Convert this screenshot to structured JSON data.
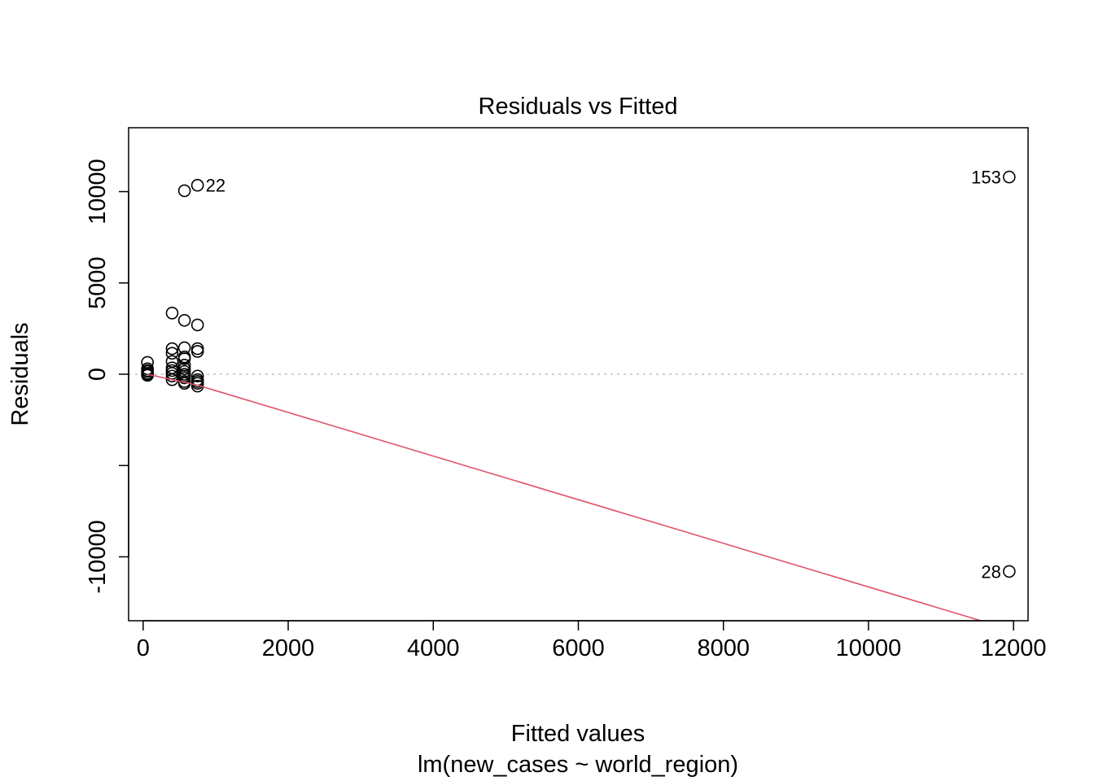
{
  "chart_data": {
    "type": "scatter",
    "title": "Residuals vs Fitted",
    "xlabel": "Fitted values",
    "subtitle": "lm(new_cases ~ world_region)",
    "ylabel": "Residuals",
    "xlim": [
      -200,
      12200
    ],
    "ylim": [
      -13500,
      13500
    ],
    "xticks": [
      0,
      2000,
      4000,
      6000,
      8000,
      10000,
      12000
    ],
    "xtick_labels": [
      "0",
      "2000",
      "4000",
      "6000",
      "8000",
      "10000",
      "12000"
    ],
    "yticks": [
      -10000,
      -5000,
      0,
      5000,
      10000
    ],
    "ytick_labels": [
      "-10000",
      "",
      "0",
      "5000",
      "10000"
    ],
    "zero_line": {
      "y": 0,
      "style": "dotted",
      "color": "#bebebe"
    },
    "smooth_line": {
      "color": "#df536b",
      "points": [
        [
          60,
          0
        ],
        [
          750,
          -600
        ],
        [
          11550,
          -13500
        ]
      ]
    },
    "point_color": "#000000",
    "points": [
      {
        "x": 60,
        "y": 650
      },
      {
        "x": 60,
        "y": 300
      },
      {
        "x": 60,
        "y": 150
      },
      {
        "x": 60,
        "y": 50
      },
      {
        "x": 60,
        "y": -20
      },
      {
        "x": 60,
        "y": -60
      },
      {
        "x": 60,
        "y": 200
      },
      {
        "x": 60,
        "y": 0
      },
      {
        "x": 400,
        "y": 3350
      },
      {
        "x": 400,
        "y": 1400
      },
      {
        "x": 400,
        "y": 1150
      },
      {
        "x": 400,
        "y": 700
      },
      {
        "x": 400,
        "y": 200
      },
      {
        "x": 400,
        "y": 50
      },
      {
        "x": 400,
        "y": -100
      },
      {
        "x": 400,
        "y": -300
      },
      {
        "x": 400,
        "y": 350
      },
      {
        "x": 570,
        "y": 10050
      },
      {
        "x": 570,
        "y": 2950
      },
      {
        "x": 570,
        "y": 1450
      },
      {
        "x": 570,
        "y": 950
      },
      {
        "x": 570,
        "y": 850
      },
      {
        "x": 570,
        "y": 500
      },
      {
        "x": 570,
        "y": 300
      },
      {
        "x": 570,
        "y": 150
      },
      {
        "x": 570,
        "y": 0
      },
      {
        "x": 570,
        "y": -200
      },
      {
        "x": 570,
        "y": -400
      },
      {
        "x": 570,
        "y": -500
      },
      {
        "x": 570,
        "y": -100
      },
      {
        "x": 750,
        "y": 10350
      },
      {
        "x": 750,
        "y": 2700
      },
      {
        "x": 750,
        "y": 1400
      },
      {
        "x": 750,
        "y": 1250
      },
      {
        "x": 750,
        "y": -100
      },
      {
        "x": 750,
        "y": -300
      },
      {
        "x": 750,
        "y": -500
      },
      {
        "x": 750,
        "y": -650
      },
      {
        "x": 750,
        "y": -400
      },
      {
        "x": 11940,
        "y": 10800
      },
      {
        "x": 11940,
        "y": -10800
      }
    ],
    "point_labels": [
      {
        "text": "22",
        "x": 750,
        "y": 10350,
        "side": "right"
      },
      {
        "text": "153",
        "x": 11940,
        "y": 10800,
        "side": "left"
      },
      {
        "text": "28",
        "x": 11940,
        "y": -10800,
        "side": "left"
      }
    ]
  }
}
